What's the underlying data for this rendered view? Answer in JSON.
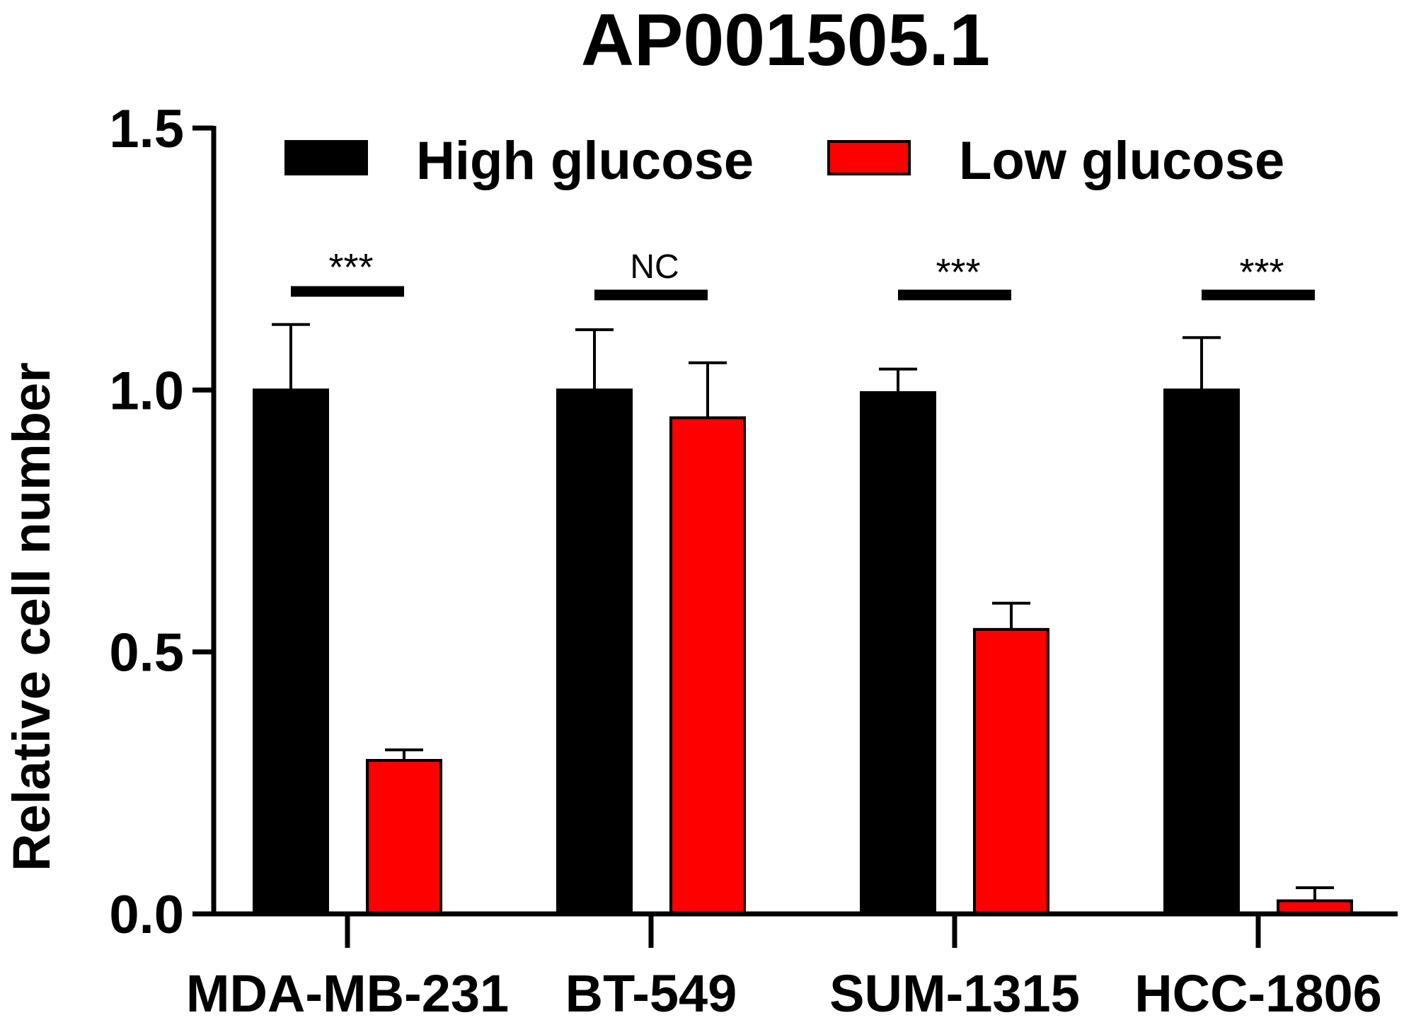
{
  "chart_data": {
    "type": "bar",
    "title": "AP001505.1",
    "xlabel": "",
    "ylabel": "Relative cell number",
    "ylim": [
      0,
      1.5
    ],
    "yticks": [
      "0.0",
      "0.5",
      "1.0",
      "1.5"
    ],
    "categories": [
      "MDA-MB-231",
      "BT-549",
      "SUM-1315",
      "HCC-1806"
    ],
    "series": [
      {
        "name": "High glucose",
        "color": "#000000",
        "values": [
          1.0,
          1.0,
          0.995,
          1.0
        ],
        "errors": [
          0.125,
          0.115,
          0.045,
          0.1
        ]
      },
      {
        "name": "Low glucose",
        "color": "#ff0000",
        "values": [
          0.293,
          0.947,
          0.543,
          0.025
        ],
        "errors": [
          0.02,
          0.105,
          0.05,
          0.025
        ]
      }
    ],
    "significance": [
      "***",
      "NC",
      "***",
      "***"
    ],
    "legend_position": "top",
    "grid": false
  }
}
